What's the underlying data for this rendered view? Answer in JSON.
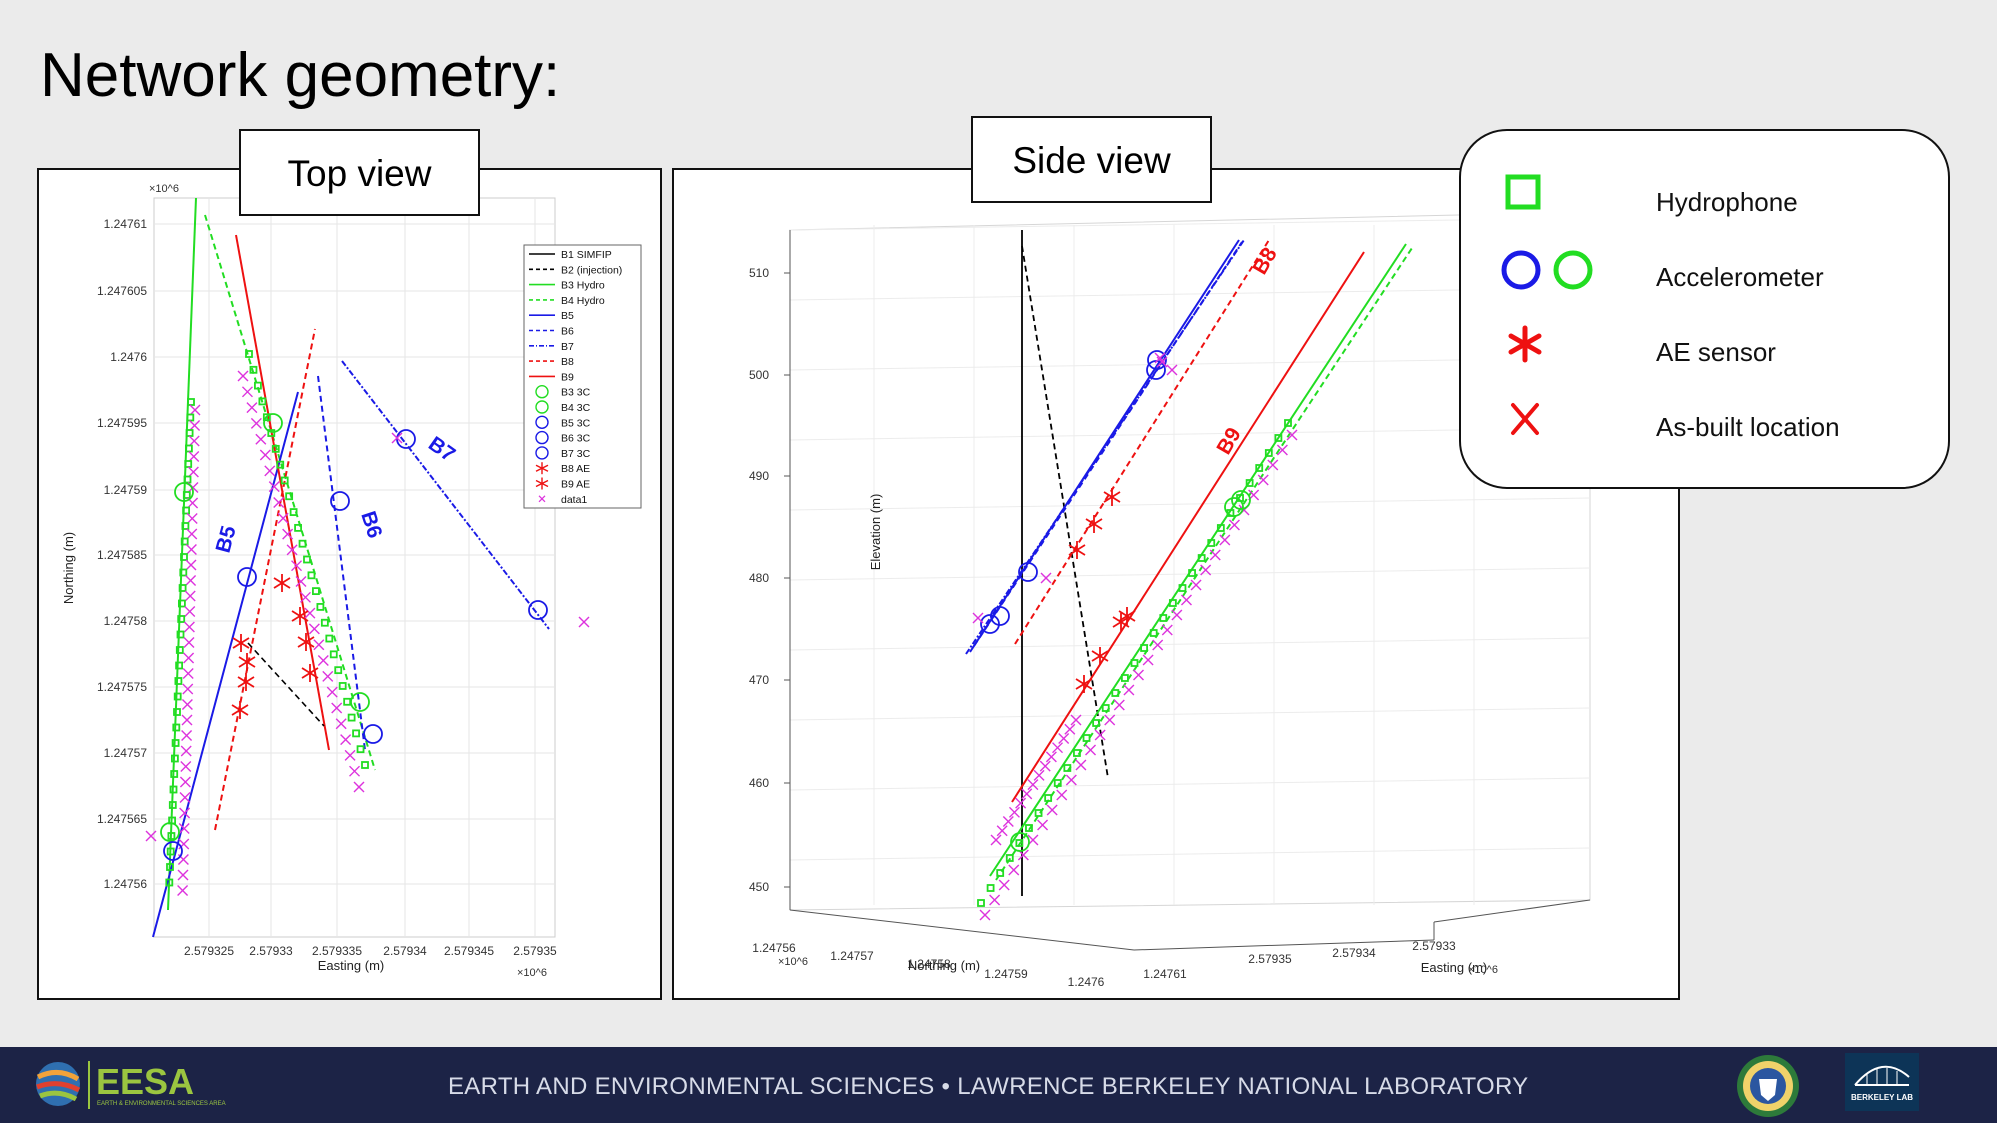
{
  "slide": {
    "title": "Network geometry:",
    "top_view_label": "Top view",
    "side_view_label": "Side view"
  },
  "legend_box": {
    "items": [
      {
        "symbol": "green-square",
        "label": "Hydrophone"
      },
      {
        "symbol": "blue-green-circles",
        "label": "Accelerometer"
      },
      {
        "symbol": "red-asterisk",
        "label": "AE sensor"
      },
      {
        "symbol": "red-x",
        "label": "As-built location"
      }
    ]
  },
  "footer": {
    "logo_text": "EESA",
    "logo_subtext": "EARTH & ENVIRONMENTAL SCIENCES AREA",
    "text": "EARTH AND ENVIRONMENTAL SCIENCES • LAWRENCE BERKELEY NATIONAL LABORATORY",
    "lab_logo_text": "BERKELEY LAB"
  },
  "colors": {
    "green": "#22dd22",
    "blue": "#1a1ae6",
    "red": "#ee1111",
    "magenta": "#dd33dd",
    "footer_bg": "#1c2346"
  },
  "chart_data": [
    {
      "type": "line",
      "view": "top",
      "xlabel": "Easting (m)",
      "ylabel": "Northing (m)",
      "x_exponent": "×10^6",
      "y_exponent": "×10^6",
      "x_ticks": [
        "2.579325",
        "2.57933",
        "2.579335",
        "2.57934",
        "2.579345",
        "2.57935"
      ],
      "y_ticks": [
        "1.24761",
        "1.247605",
        "1.2476",
        "1.247595",
        "1.24759",
        "1.247585",
        "1.24758",
        "1.247575",
        "1.24757",
        "1.247565",
        "1.24756"
      ],
      "xlim": [
        2.579321,
        2.5793515
      ],
      "ylim": [
        1.2475556,
        1.2476117
      ],
      "legend": [
        "B1 SIMFIP",
        "B2 (injection)",
        "B3 Hydro",
        "B4 Hydro",
        "B5",
        "B6",
        "B7",
        "B8",
        "B9",
        "B3 3C",
        "B4 3C",
        "B5 3C",
        "B6 3C",
        "B7 3C",
        "B8 AE",
        "B9 AE",
        "data1"
      ],
      "legend_placement": "top-right",
      "annotations": [
        "B5",
        "B6",
        "B7"
      ],
      "grid": true
    },
    {
      "type": "line",
      "view": "side",
      "xlabel": "Northing (m)",
      "ylabel": "Elevation (m)",
      "zlabel": "Easting (m)",
      "x_exponent": "×10^6",
      "z_exponent": "×10^6",
      "x_ticks": [
        "1.24756",
        "1.24757",
        "1.24758",
        "1.24759",
        "1.2476",
        "1.24761"
      ],
      "z_ticks": [
        "2.57935",
        "2.57934",
        "2.57933"
      ],
      "y_ticks": [
        "510",
        "500",
        "490",
        "480",
        "470",
        "460",
        "450"
      ],
      "ylim": [
        448,
        512
      ],
      "annotations": [
        "B8",
        "B9"
      ],
      "grid": true
    }
  ]
}
